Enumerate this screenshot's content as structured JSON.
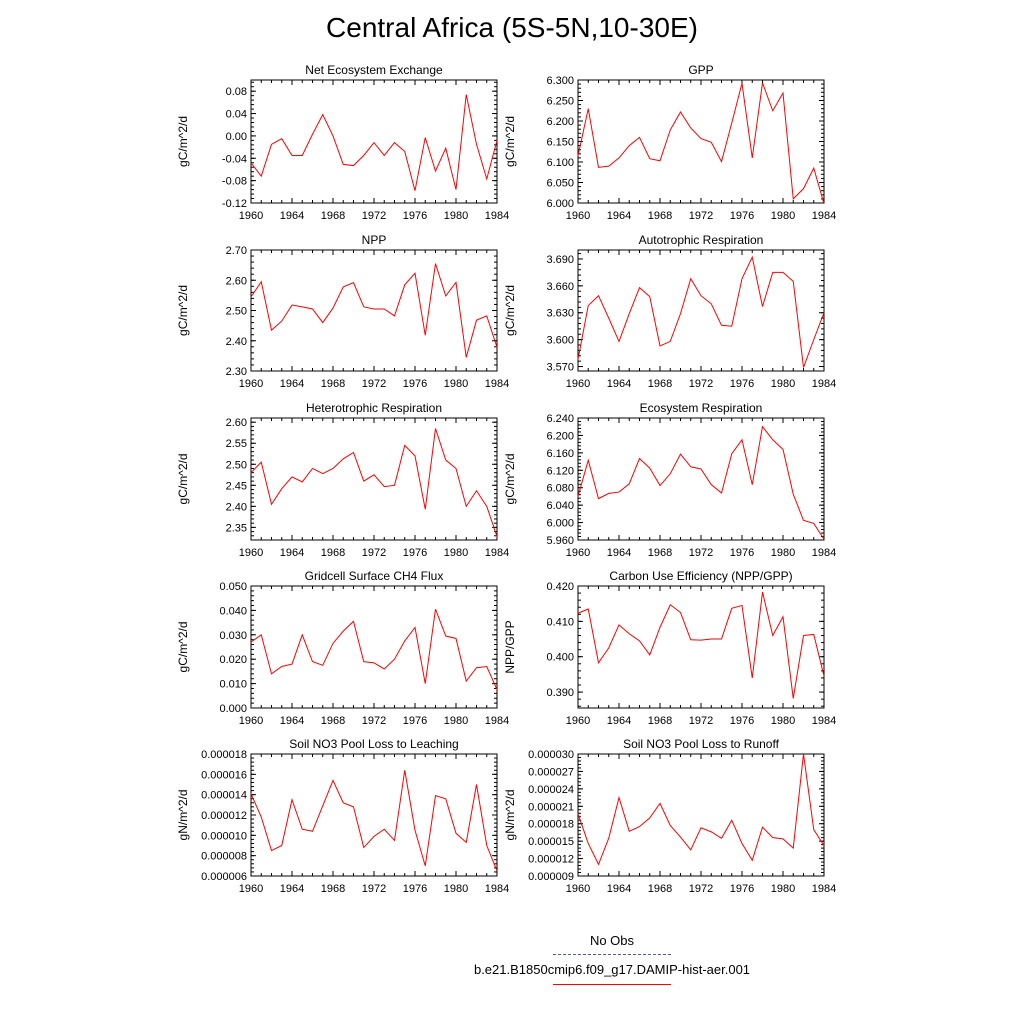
{
  "page_title": "Central Africa (5S-5N,10-30E)",
  "colors": {
    "model_line": "#ff0000",
    "obs_line": "#5555cc",
    "axis": "#000000"
  },
  "legend": [
    {
      "label": "No Obs",
      "color": "#5555cc",
      "dash": "dashed"
    },
    {
      "label": "b.e21.B1850cmip6.f09_g17.DAMIP-hist-aer.001",
      "color": "#ff0000",
      "dash": "solid"
    }
  ],
  "chart_data": [
    {
      "type": "line",
      "title": "Net Ecosystem Exchange",
      "xlabel": "",
      "ylabel": "gC/m^2/d",
      "xlim": [
        1960,
        1984
      ],
      "ylim": [
        -0.12,
        0.1
      ],
      "yticks": [
        "0.08",
        "0.04",
        "0.00",
        "-0.04",
        "-0.08",
        "-0.12"
      ],
      "ytick_values": [
        0.08,
        0.04,
        0.0,
        -0.04,
        -0.08,
        -0.12
      ],
      "xticks": [
        "1960",
        "1964",
        "1968",
        "1972",
        "1976",
        "1980",
        "1984"
      ],
      "x": [
        1960,
        1961,
        1962,
        1963,
        1964,
        1965,
        1966,
        1967,
        1968,
        1969,
        1970,
        1971,
        1972,
        1973,
        1974,
        1975,
        1976,
        1977,
        1978,
        1979,
        1980,
        1981,
        1982,
        1983,
        1984
      ],
      "series": [
        {
          "values": [
            -0.048,
            -0.072,
            -0.015,
            -0.005,
            -0.035,
            -0.035,
            0.003,
            0.038,
            0.0,
            -0.051,
            -0.053,
            -0.035,
            -0.012,
            -0.035,
            -0.012,
            -0.028,
            -0.098,
            -0.003,
            -0.063,
            -0.022,
            -0.096,
            0.074,
            -0.015,
            -0.077,
            -0.008
          ]
        }
      ]
    },
    {
      "type": "line",
      "title": "GPP",
      "xlabel": "",
      "ylabel": "gC/m^2/d",
      "xlim": [
        1960,
        1984
      ],
      "ylim": [
        6.0,
        6.3
      ],
      "yticks": [
        "6.300",
        "6.250",
        "6.200",
        "6.150",
        "6.100",
        "6.050",
        "6.000"
      ],
      "ytick_values": [
        6.3,
        6.25,
        6.2,
        6.15,
        6.1,
        6.05,
        6.0
      ],
      "xticks": [
        "1960",
        "1964",
        "1968",
        "1972",
        "1976",
        "1980",
        "1984"
      ],
      "x": [
        1960,
        1961,
        1962,
        1963,
        1964,
        1965,
        1966,
        1967,
        1968,
        1969,
        1970,
        1971,
        1972,
        1973,
        1974,
        1975,
        1976,
        1977,
        1978,
        1979,
        1980,
        1981,
        1982,
        1983,
        1984
      ],
      "series": [
        {
          "values": [
            6.115,
            6.23,
            6.087,
            6.09,
            6.11,
            6.14,
            6.16,
            6.108,
            6.103,
            6.178,
            6.222,
            6.183,
            6.157,
            6.148,
            6.101,
            6.195,
            6.292,
            6.11,
            6.293,
            6.225,
            6.268,
            6.01,
            6.035,
            6.085,
            5.998
          ]
        }
      ]
    },
    {
      "type": "line",
      "title": "NPP",
      "xlabel": "",
      "ylabel": "gC/m^2/d",
      "xlim": [
        1960,
        1984
      ],
      "ylim": [
        2.3,
        2.7
      ],
      "yticks": [
        "2.70",
        "2.60",
        "2.50",
        "2.40",
        "2.30"
      ],
      "ytick_values": [
        2.7,
        2.6,
        2.5,
        2.4,
        2.3
      ],
      "xticks": [
        "1960",
        "1964",
        "1968",
        "1972",
        "1976",
        "1980",
        "1984"
      ],
      "x": [
        1960,
        1961,
        1962,
        1963,
        1964,
        1965,
        1966,
        1967,
        1968,
        1969,
        1970,
        1971,
        1972,
        1973,
        1974,
        1975,
        1976,
        1977,
        1978,
        1979,
        1980,
        1981,
        1982,
        1983,
        1984
      ],
      "series": [
        {
          "values": [
            2.545,
            2.595,
            2.435,
            2.465,
            2.518,
            2.512,
            2.505,
            2.46,
            2.508,
            2.578,
            2.592,
            2.512,
            2.505,
            2.505,
            2.482,
            2.585,
            2.623,
            2.418,
            2.655,
            2.548,
            2.593,
            2.345,
            2.468,
            2.482,
            2.378
          ]
        }
      ]
    },
    {
      "type": "line",
      "title": "Autotrophic Respiration",
      "xlabel": "",
      "ylabel": "gC/m^2/d",
      "xlim": [
        1960,
        1984
      ],
      "ylim": [
        3.565,
        3.7
      ],
      "yticks": [
        "3.690",
        "3.660",
        "3.630",
        "3.600",
        "3.570"
      ],
      "ytick_values": [
        3.69,
        3.66,
        3.63,
        3.6,
        3.57
      ],
      "xticks": [
        "1960",
        "1964",
        "1968",
        "1972",
        "1976",
        "1980",
        "1984"
      ],
      "x": [
        1960,
        1961,
        1962,
        1963,
        1964,
        1965,
        1966,
        1967,
        1968,
        1969,
        1970,
        1971,
        1972,
        1973,
        1974,
        1975,
        1976,
        1977,
        1978,
        1979,
        1980,
        1981,
        1982,
        1983,
        1984
      ],
      "series": [
        {
          "values": [
            3.578,
            3.638,
            3.649,
            3.624,
            3.598,
            3.629,
            3.658,
            3.648,
            3.593,
            3.598,
            3.629,
            3.668,
            3.649,
            3.64,
            3.616,
            3.615,
            3.668,
            3.692,
            3.637,
            3.675,
            3.675,
            3.665,
            3.569,
            3.6,
            3.63
          ]
        }
      ]
    },
    {
      "type": "line",
      "title": "Heterotrophic Respiration",
      "xlabel": "",
      "ylabel": "gC/m^2/d",
      "xlim": [
        1960,
        1984
      ],
      "ylim": [
        2.32,
        2.61
      ],
      "yticks": [
        "2.60",
        "2.55",
        "2.50",
        "2.45",
        "2.40",
        "2.35"
      ],
      "ytick_values": [
        2.6,
        2.55,
        2.5,
        2.45,
        2.4,
        2.35
      ],
      "xticks": [
        "1960",
        "1964",
        "1968",
        "1972",
        "1976",
        "1980",
        "1984"
      ],
      "x": [
        1960,
        1961,
        1962,
        1963,
        1964,
        1965,
        1966,
        1967,
        1968,
        1969,
        1970,
        1971,
        1972,
        1973,
        1974,
        1975,
        1976,
        1977,
        1978,
        1979,
        1980,
        1981,
        1982,
        1983,
        1984
      ],
      "series": [
        {
          "values": [
            2.48,
            2.505,
            2.405,
            2.442,
            2.47,
            2.458,
            2.49,
            2.478,
            2.49,
            2.513,
            2.528,
            2.46,
            2.475,
            2.447,
            2.45,
            2.545,
            2.52,
            2.393,
            2.585,
            2.51,
            2.49,
            2.4,
            2.437,
            2.4,
            2.328
          ]
        }
      ]
    },
    {
      "type": "line",
      "title": "Ecosystem Respiration",
      "xlabel": "",
      "ylabel": "gC/m^2/d",
      "xlim": [
        1960,
        1984
      ],
      "ylim": [
        5.96,
        6.24
      ],
      "yticks": [
        "6.240",
        "6.200",
        "6.160",
        "6.120",
        "6.080",
        "6.040",
        "6.000",
        "5.960"
      ],
      "ytick_values": [
        6.24,
        6.2,
        6.16,
        6.12,
        6.08,
        6.04,
        6.0,
        5.96
      ],
      "xticks": [
        "1960",
        "1964",
        "1968",
        "1972",
        "1976",
        "1980",
        "1984"
      ],
      "x": [
        1960,
        1961,
        1962,
        1963,
        1964,
        1965,
        1966,
        1967,
        1968,
        1969,
        1970,
        1971,
        1972,
        1973,
        1974,
        1975,
        1976,
        1977,
        1978,
        1979,
        1980,
        1981,
        1982,
        1983,
        1984
      ],
      "series": [
        {
          "values": [
            6.06,
            6.143,
            6.055,
            6.067,
            6.07,
            6.089,
            6.147,
            6.125,
            6.085,
            6.112,
            6.157,
            6.128,
            6.123,
            6.087,
            6.068,
            6.158,
            6.19,
            6.087,
            6.22,
            6.19,
            6.168,
            6.065,
            6.005,
            5.998,
            5.962
          ]
        }
      ]
    },
    {
      "type": "line",
      "title": "Gridcell Surface CH4 Flux",
      "xlabel": "",
      "ylabel": "gC/m^2/d",
      "xlim": [
        1960,
        1984
      ],
      "ylim": [
        0.0,
        0.05
      ],
      "yticks": [
        "0.050",
        "0.040",
        "0.030",
        "0.020",
        "0.010",
        "0.000"
      ],
      "ytick_values": [
        0.05,
        0.04,
        0.03,
        0.02,
        0.01,
        0.0
      ],
      "xticks": [
        "1960",
        "1964",
        "1968",
        "1972",
        "1976",
        "1980",
        "1984"
      ],
      "x": [
        1960,
        1961,
        1962,
        1963,
        1964,
        1965,
        1966,
        1967,
        1968,
        1969,
        1970,
        1971,
        1972,
        1973,
        1974,
        1975,
        1976,
        1977,
        1978,
        1979,
        1980,
        1981,
        1982,
        1983,
        1984
      ],
      "series": [
        {
          "values": [
            0.027,
            0.03,
            0.014,
            0.017,
            0.018,
            0.03,
            0.019,
            0.0175,
            0.0265,
            0.0315,
            0.0355,
            0.019,
            0.0185,
            0.016,
            0.02,
            0.0275,
            0.033,
            0.01,
            0.0405,
            0.0295,
            0.0285,
            0.011,
            0.0165,
            0.017,
            0.0075
          ]
        }
      ]
    },
    {
      "type": "line",
      "title": "Carbon Use Efficiency (NPP/GPP)",
      "xlabel": "",
      "ylabel": "NPP/GPP",
      "xlim": [
        1960,
        1984
      ],
      "ylim": [
        0.3855,
        0.42
      ],
      "yticks": [
        "0.420",
        "0.410",
        "0.400",
        "0.390"
      ],
      "ytick_values": [
        0.42,
        0.41,
        0.4,
        0.39
      ],
      "xticks": [
        "1960",
        "1964",
        "1968",
        "1972",
        "1976",
        "1980",
        "1984"
      ],
      "x": [
        1960,
        1961,
        1962,
        1963,
        1964,
        1965,
        1966,
        1967,
        1968,
        1969,
        1970,
        1971,
        1972,
        1973,
        1974,
        1975,
        1976,
        1977,
        1978,
        1979,
        1980,
        1981,
        1982,
        1983,
        1984
      ],
      "series": [
        {
          "values": [
            0.4123,
            0.4135,
            0.3983,
            0.4025,
            0.409,
            0.4065,
            0.4045,
            0.4005,
            0.4083,
            0.4147,
            0.4125,
            0.4048,
            0.4047,
            0.405,
            0.405,
            0.4137,
            0.4145,
            0.394,
            0.4183,
            0.406,
            0.4113,
            0.3882,
            0.406,
            0.4063,
            0.3945
          ]
        }
      ]
    },
    {
      "type": "line",
      "title": "Soil NO3 Pool Loss to Leaching",
      "xlabel": "",
      "ylabel": "gN/m^2/d",
      "xlim": [
        1960,
        1984
      ],
      "ylim": [
        6e-06,
        1.8e-05
      ],
      "yticks": [
        "0.000018",
        "0.000016",
        "0.000014",
        "0.000012",
        "0.000010",
        "0.000008",
        "0.000006"
      ],
      "ytick_values": [
        1.8e-05,
        1.6e-05,
        1.4e-05,
        1.2e-05,
        1e-05,
        8e-06,
        6e-06
      ],
      "xticks": [
        "1960",
        "1964",
        "1968",
        "1972",
        "1976",
        "1980",
        "1984"
      ],
      "x": [
        1960,
        1961,
        1962,
        1963,
        1964,
        1965,
        1966,
        1967,
        1968,
        1969,
        1970,
        1971,
        1972,
        1973,
        1974,
        1975,
        1976,
        1977,
        1978,
        1979,
        1980,
        1981,
        1982,
        1983,
        1984
      ],
      "series": [
        {
          "values": [
            1.41e-05,
            1.18e-05,
            8.5e-06,
            9e-06,
            1.35e-05,
            1.06e-05,
            1.04e-05,
            1.29e-05,
            1.54e-05,
            1.32e-05,
            1.28e-05,
            8.8e-06,
            9.9e-06,
            1.06e-05,
            9.5e-06,
            1.64e-05,
            1.05e-05,
            7e-06,
            1.39e-05,
            1.36e-05,
            1.02e-05,
            9.3e-06,
            1.5e-05,
            9e-06,
            6.5e-06
          ]
        }
      ]
    },
    {
      "type": "line",
      "title": "Soil NO3 Pool Loss to Runoff",
      "xlabel": "",
      "ylabel": "gN/m^2/d",
      "xlim": [
        1960,
        1984
      ],
      "ylim": [
        9e-06,
        3e-05
      ],
      "yticks": [
        "0.000030",
        "0.000027",
        "0.000024",
        "0.000021",
        "0.000018",
        "0.000015",
        "0.000012",
        "0.000009"
      ],
      "ytick_values": [
        3e-05,
        2.7e-05,
        2.4e-05,
        2.1e-05,
        1.8e-05,
        1.5e-05,
        1.2e-05,
        9e-06
      ],
      "xticks": [
        "1960",
        "1964",
        "1968",
        "1972",
        "1976",
        "1980",
        "1984"
      ],
      "x": [
        1960,
        1961,
        1962,
        1963,
        1964,
        1965,
        1966,
        1967,
        1968,
        1969,
        1970,
        1971,
        1972,
        1973,
        1974,
        1975,
        1976,
        1977,
        1978,
        1979,
        1980,
        1981,
        1982,
        1983,
        1984
      ],
      "series": [
        {
          "values": [
            1.97e-05,
            1.46e-05,
            1.1e-05,
            1.55e-05,
            2.25e-05,
            1.67e-05,
            1.75e-05,
            1.9e-05,
            2.15e-05,
            1.77e-05,
            1.57e-05,
            1.35e-05,
            1.73e-05,
            1.66e-05,
            1.55e-05,
            1.86e-05,
            1.46e-05,
            1.17e-05,
            1.74e-05,
            1.56e-05,
            1.54e-05,
            1.38e-05,
            3e-05,
            1.7e-05,
            1.42e-05
          ]
        }
      ]
    }
  ]
}
